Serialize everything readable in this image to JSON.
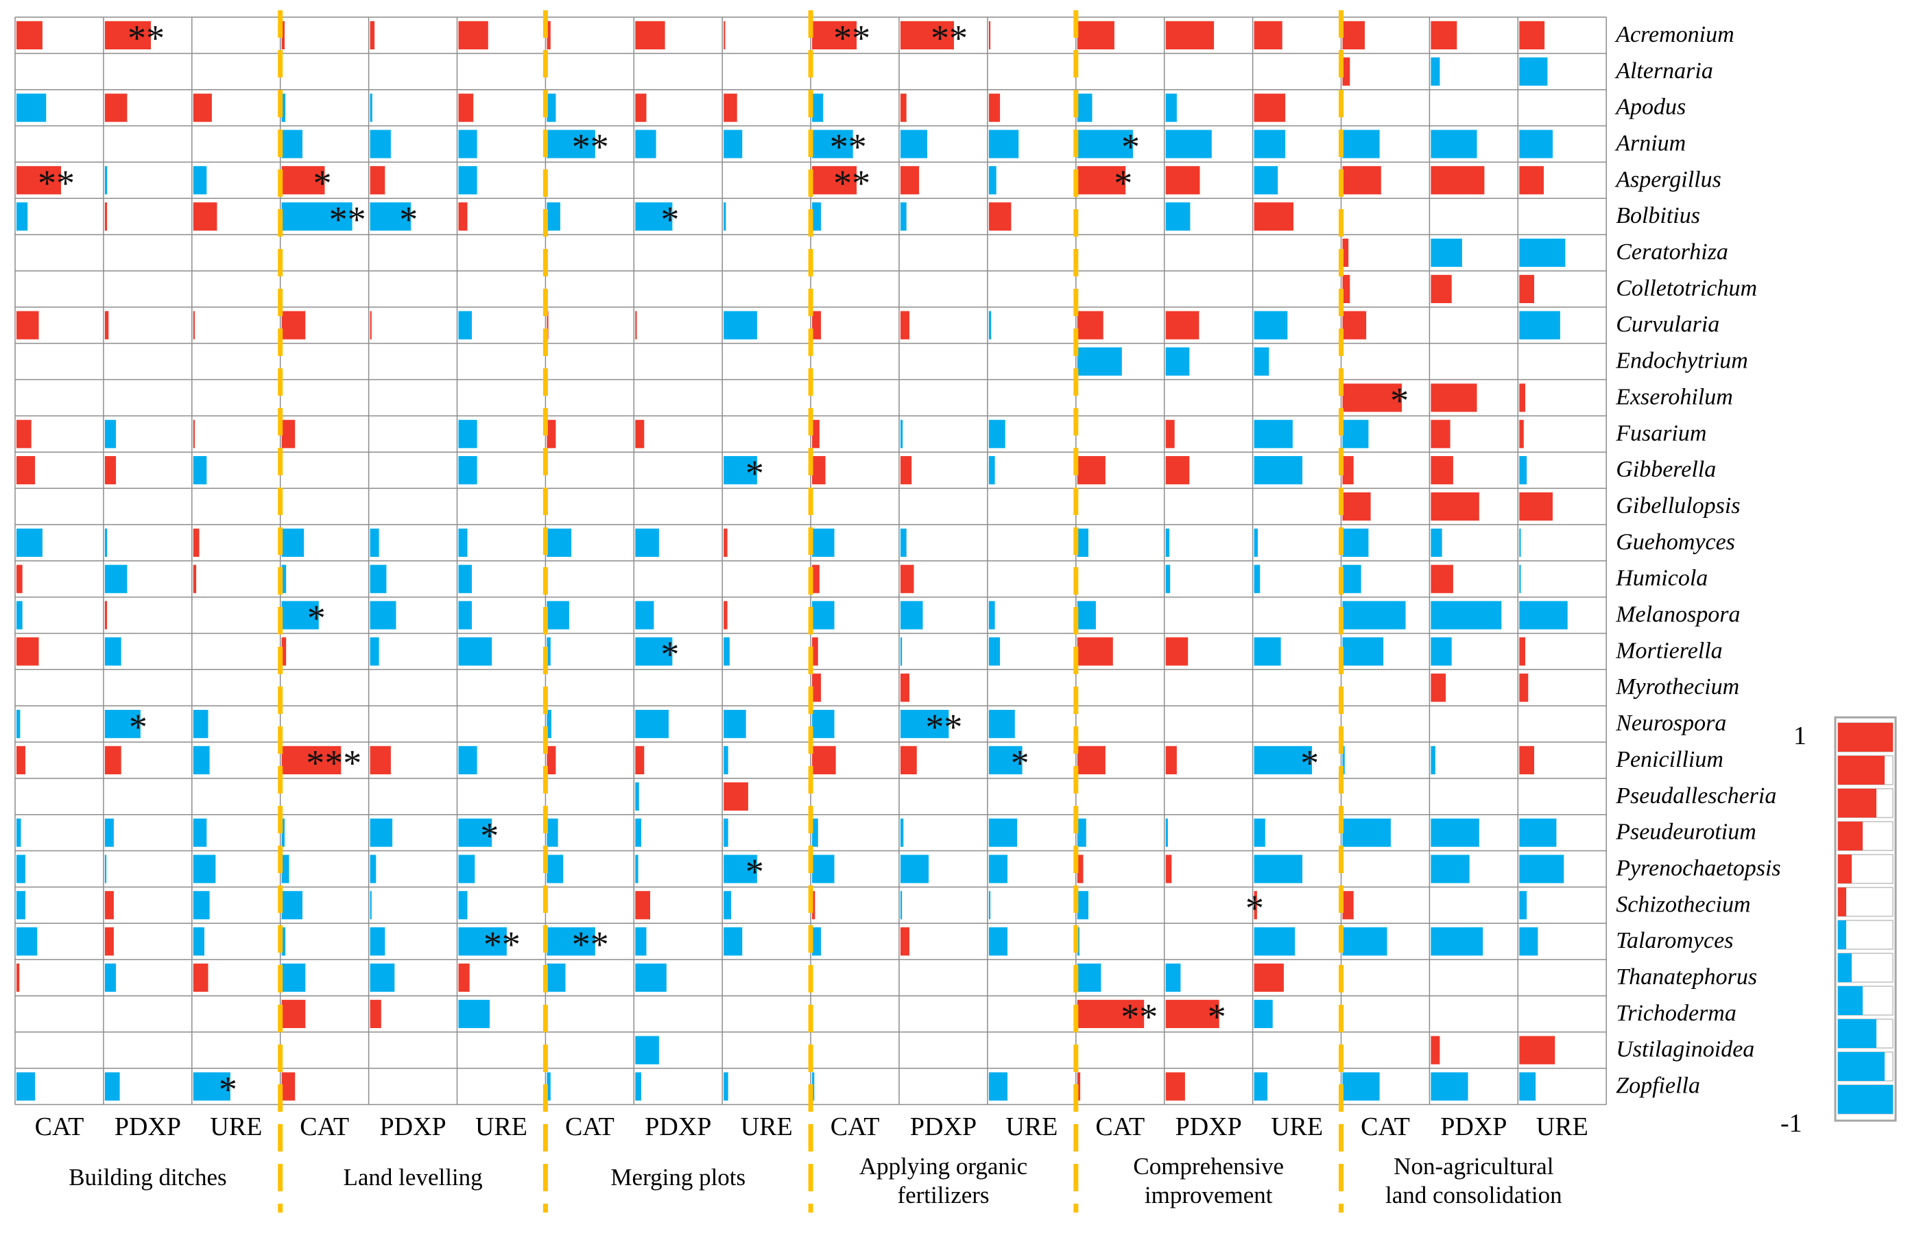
{
  "chart_data": {
    "type": "heatmap",
    "title": "",
    "value_range": [
      -1,
      1
    ],
    "colors": {
      "positive": "#f0392b",
      "negative": "#00aeef",
      "divider": "#ffc000",
      "grid": "#8c8c8c"
    },
    "legend": {
      "top_label": "1",
      "bottom_label": "-1",
      "levels": [
        1,
        0.85,
        0.7,
        0.45,
        0.25,
        0.15,
        -0.15,
        -0.25,
        -0.45,
        -0.7,
        -0.85,
        -1
      ]
    },
    "enzymes": [
      "CAT",
      "PDXP",
      "URE"
    ],
    "groups": [
      {
        "label_lines": [
          "Building ditches"
        ]
      },
      {
        "label_lines": [
          "Land levelling"
        ]
      },
      {
        "label_lines": [
          "Merging plots"
        ]
      },
      {
        "label_lines": [
          "Applying organic",
          "fertilizers"
        ]
      },
      {
        "label_lines": [
          "Comprehensive",
          "improvement"
        ]
      },
      {
        "label_lines": [
          "Non-agricultural",
          "land consolidation"
        ]
      }
    ],
    "genera": [
      "Acremonium",
      "Alternaria",
      "Apodus",
      "Arnium",
      "Aspergillus",
      "Bolbitius",
      "Ceratorhiza",
      "Colletotrichum",
      "Curvularia",
      "Endochytrium",
      "Exserohilum",
      "Fusarium",
      "Gibberella",
      "Gibellulopsis",
      "Guehomyces",
      "Humicola",
      "Melanospora",
      "Mortierella",
      "Myrothecium",
      "Neurospora",
      "Penicillium",
      "Pseudallescheria",
      "Pseudeurotium",
      "Pyrenochaetopsis",
      "Schizothecium",
      "Talaromyces",
      "Thanatephorus",
      "Trichoderma",
      "Ustilaginoidea",
      "Zopfiella"
    ],
    "values": [
      [
        0.35,
        0.62,
        0,
        0.04,
        0.06,
        0.4,
        0.05,
        0.4,
        0.02,
        0.6,
        0.72,
        0.02,
        0.5,
        0.65,
        0.38,
        0.3,
        0.35,
        0.34
      ],
      [
        0,
        0,
        0,
        0,
        0,
        0,
        0,
        0,
        0,
        0,
        0,
        0,
        0,
        0,
        0,
        0.1,
        -0.12,
        -0.38
      ],
      [
        -0.4,
        0.3,
        0.25,
        -0.05,
        -0.03,
        0.2,
        -0.12,
        0.15,
        0.18,
        -0.15,
        0.08,
        0.15,
        -0.2,
        -0.15,
        0.42,
        0,
        0,
        0
      ],
      [
        0,
        0,
        0,
        -0.28,
        -0.28,
        -0.25,
        -0.65,
        -0.28,
        -0.25,
        -0.55,
        -0.36,
        -0.4,
        -0.75,
        -0.62,
        -0.42,
        -0.5,
        -0.62,
        -0.45
      ],
      [
        0.6,
        -0.03,
        -0.18,
        0.58,
        0.2,
        -0.25,
        0,
        0,
        0,
        0.6,
        0.25,
        -0.1,
        0.65,
        0.46,
        -0.32,
        0.52,
        0.72,
        0.33
      ],
      [
        -0.15,
        0.03,
        0.32,
        -0.95,
        -0.55,
        0.12,
        -0.18,
        -0.5,
        -0.03,
        -0.12,
        -0.08,
        0.3,
        0,
        -0.33,
        0.53,
        0,
        0,
        0
      ],
      [
        0,
        0,
        0,
        0,
        0,
        0,
        0,
        0,
        0,
        0,
        0,
        0,
        0,
        0,
        0,
        0.08,
        -0.42,
        -0.62
      ],
      [
        0,
        0,
        0,
        0,
        0,
        0,
        0,
        0,
        0,
        0,
        0,
        0,
        0,
        0,
        0,
        0.1,
        0.28,
        0.2
      ],
      [
        0.3,
        0.05,
        0.02,
        0.32,
        0.02,
        -0.18,
        0.02,
        0.02,
        -0.45,
        0.12,
        0.12,
        -0.03,
        0.35,
        0.45,
        -0.45,
        0.32,
        0,
        -0.55
      ],
      [
        0,
        0,
        0,
        0,
        0,
        0,
        0,
        0,
        0,
        0,
        0,
        0,
        -0.6,
        -0.32,
        -0.2,
        0,
        0,
        0
      ],
      [
        0,
        0,
        0,
        0,
        0,
        0,
        0,
        0,
        0,
        0,
        0,
        0,
        0,
        0,
        0,
        0.8,
        0.62,
        0.08
      ],
      [
        0.2,
        -0.15,
        0.02,
        0.18,
        0,
        -0.25,
        0.12,
        0.12,
        0,
        0.1,
        -0.03,
        -0.22,
        0,
        0.12,
        -0.52,
        -0.35,
        0.26,
        0.06
      ],
      [
        0.25,
        0.15,
        -0.18,
        0,
        0,
        -0.25,
        0,
        0,
        -0.45,
        0.18,
        0.15,
        -0.08,
        0.38,
        0.32,
        -0.65,
        0.15,
        0.3,
        -0.1
      ],
      [
        0,
        0,
        0,
        0,
        0,
        0,
        0,
        0,
        0,
        0,
        0,
        0,
        0,
        0,
        0,
        0.38,
        0.65,
        0.45
      ],
      [
        -0.35,
        -0.03,
        0.08,
        -0.3,
        -0.12,
        -0.12,
        -0.33,
        -0.32,
        0.05,
        -0.3,
        -0.08,
        0,
        -0.15,
        -0.05,
        -0.05,
        -0.35,
        -0.15,
        -0.02
      ],
      [
        0.08,
        -0.3,
        0.04,
        -0.06,
        -0.22,
        -0.18,
        0,
        0,
        0,
        0.1,
        0.18,
        0,
        0,
        -0.06,
        -0.08,
        -0.25,
        0.3,
        -0.02
      ],
      [
        -0.08,
        0.03,
        0,
        -0.5,
        -0.35,
        -0.18,
        -0.3,
        -0.25,
        0.05,
        -0.3,
        -0.3,
        -0.08,
        -0.25,
        0,
        0,
        -0.85,
        -0.95,
        -0.65
      ],
      [
        0.3,
        -0.22,
        0,
        0.06,
        -0.12,
        -0.45,
        -0.05,
        -0.5,
        -0.08,
        0.08,
        -0.02,
        -0.15,
        0.48,
        0.3,
        -0.36,
        -0.55,
        -0.28,
        0.08
      ],
      [
        0,
        0,
        0,
        0,
        0,
        0,
        0,
        0,
        0,
        0.12,
        0.12,
        0,
        0,
        0,
        0,
        0,
        0.2,
        0.12
      ],
      [
        -0.05,
        -0.48,
        -0.2,
        0,
        0,
        0,
        -0.06,
        -0.45,
        -0.3,
        -0.3,
        -0.65,
        -0.35,
        0,
        0,
        0,
        0,
        0,
        0
      ],
      [
        0.12,
        0.22,
        -0.22,
        0.8,
        0.28,
        -0.25,
        0.12,
        0.12,
        -0.06,
        0.32,
        0.22,
        -0.45,
        0.38,
        0.15,
        -0.78,
        -0.03,
        -0.06,
        0.2
      ],
      [
        0,
        0,
        0,
        0,
        0,
        0,
        0,
        -0.05,
        0.33,
        0,
        0,
        0,
        0,
        0,
        0,
        0,
        0,
        0
      ],
      [
        -0.06,
        -0.12,
        -0.18,
        -0.04,
        -0.3,
        -0.45,
        -0.15,
        -0.08,
        -0.06,
        -0.08,
        -0.04,
        -0.38,
        -0.12,
        -0.03,
        -0.15,
        -0.65,
        -0.65,
        -0.5
      ],
      [
        -0.12,
        -0.02,
        -0.3,
        -0.1,
        -0.08,
        -0.22,
        -0.22,
        -0.04,
        -0.45,
        -0.3,
        -0.38,
        -0.25,
        0.08,
        0.08,
        -0.65,
        0,
        -0.52,
        -0.6
      ],
      [
        -0.12,
        0.12,
        -0.22,
        -0.28,
        -0.02,
        -0.12,
        0,
        0.2,
        -0.1,
        0.04,
        -0.02,
        -0.02,
        -0.15,
        0,
        0.04,
        0.15,
        0,
        -0.1
      ],
      [
        -0.28,
        0.12,
        -0.15,
        -0.05,
        -0.2,
        -0.65,
        -0.65,
        -0.15,
        -0.25,
        -0.12,
        0.12,
        -0.25,
        -0.03,
        0,
        -0.55,
        -0.6,
        -0.7,
        -0.25
      ],
      [
        0.04,
        -0.15,
        0.2,
        -0.32,
        -0.33,
        0.15,
        -0.25,
        -0.42,
        0,
        0,
        0,
        0,
        -0.32,
        -0.2,
        0.4,
        0,
        0,
        0
      ],
      [
        0,
        0,
        0,
        0.32,
        0.15,
        -0.42,
        0,
        0,
        0,
        0,
        0,
        0,
        0.9,
        0.72,
        -0.25,
        0,
        0,
        0
      ],
      [
        0,
        0,
        0,
        0,
        0,
        0,
        0,
        -0.32,
        0,
        0,
        0,
        0,
        0,
        0,
        0,
        0,
        0.12,
        0.48
      ],
      [
        -0.25,
        -0.2,
        -0.5,
        0.18,
        0,
        0,
        -0.05,
        -0.08,
        -0.06,
        -0.03,
        0,
        -0.25,
        0.04,
        0.26,
        -0.18,
        -0.5,
        -0.5,
        -0.22
      ]
    ],
    "significance": [
      {
        "row": 0,
        "col": 1,
        "label": "**"
      },
      {
        "row": 0,
        "col": 9,
        "label": "**"
      },
      {
        "row": 0,
        "col": 10,
        "label": "**"
      },
      {
        "row": 3,
        "col": 6,
        "label": "**"
      },
      {
        "row": 3,
        "col": 9,
        "label": "**"
      },
      {
        "row": 3,
        "col": 12,
        "label": "*"
      },
      {
        "row": 4,
        "col": 0,
        "label": "**"
      },
      {
        "row": 4,
        "col": 3,
        "label": "*"
      },
      {
        "row": 4,
        "col": 9,
        "label": "**"
      },
      {
        "row": 4,
        "col": 12,
        "label": "*"
      },
      {
        "row": 5,
        "col": 3,
        "label": "**"
      },
      {
        "row": 5,
        "col": 4,
        "label": "*"
      },
      {
        "row": 5,
        "col": 7,
        "label": "*"
      },
      {
        "row": 10,
        "col": 15,
        "label": "*"
      },
      {
        "row": 12,
        "col": 8,
        "label": "*"
      },
      {
        "row": 16,
        "col": 3,
        "label": "*"
      },
      {
        "row": 17,
        "col": 7,
        "label": "*"
      },
      {
        "row": 19,
        "col": 1,
        "label": "*"
      },
      {
        "row": 19,
        "col": 10,
        "label": "**"
      },
      {
        "row": 20,
        "col": 3,
        "label": "***"
      },
      {
        "row": 20,
        "col": 11,
        "label": "*"
      },
      {
        "row": 20,
        "col": 14,
        "label": "*"
      },
      {
        "row": 22,
        "col": 5,
        "label": "*"
      },
      {
        "row": 23,
        "col": 8,
        "label": "*"
      },
      {
        "row": 24,
        "col": 14,
        "label": "*"
      },
      {
        "row": 25,
        "col": 5,
        "label": "**"
      },
      {
        "row": 25,
        "col": 6,
        "label": "**"
      },
      {
        "row": 27,
        "col": 12,
        "label": "**"
      },
      {
        "row": 27,
        "col": 13,
        "label": "*"
      },
      {
        "row": 29,
        "col": 2,
        "label": "*"
      }
    ]
  }
}
